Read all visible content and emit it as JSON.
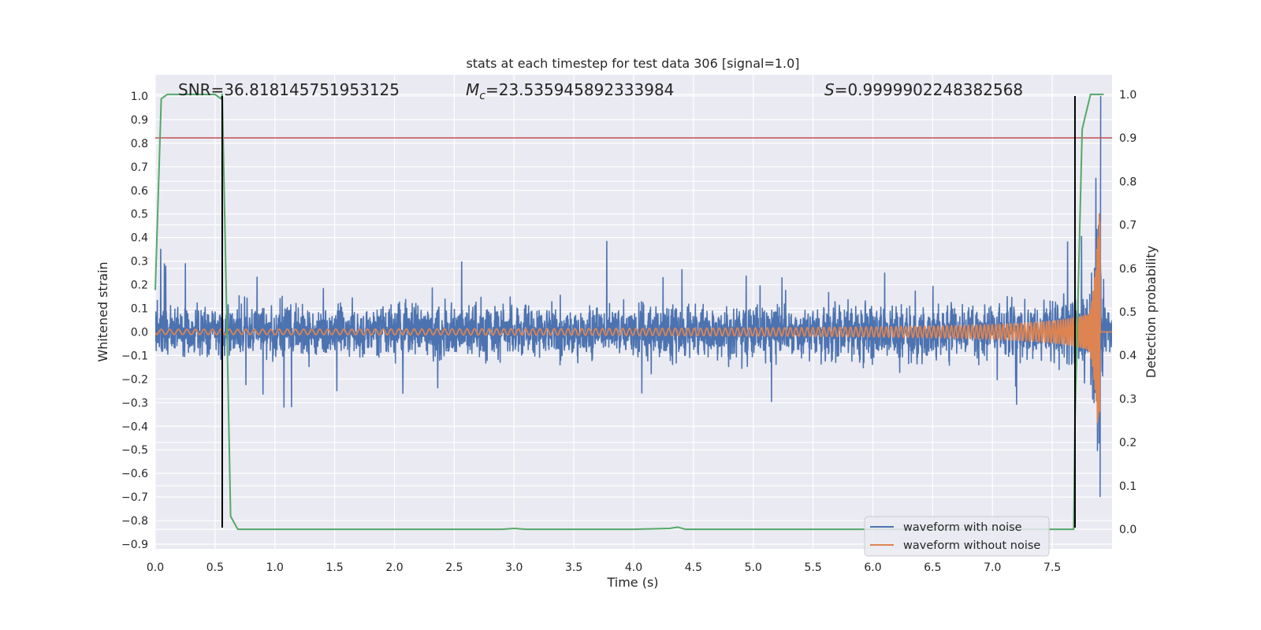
{
  "chart_data": {
    "type": "line",
    "title": "stats at each timestep for test data 306 [signal=1.0]",
    "xlabel": "Time (s)",
    "ylabel": "Whitened strain",
    "ylabel_right": "Detection probability",
    "xlim": [
      0.0,
      8.0
    ],
    "ylim": [
      -0.92,
      1.09
    ],
    "ylim_right": [
      -0.045,
      1.045
    ],
    "xticks": [
      "0.0",
      "0.5",
      "1.0",
      "1.5",
      "2.0",
      "2.5",
      "3.0",
      "3.5",
      "4.0",
      "4.5",
      "5.0",
      "5.5",
      "6.0",
      "6.5",
      "7.0",
      "7.5"
    ],
    "yticks": [
      "−0.9",
      "−0.8",
      "−0.7",
      "−0.6",
      "−0.5",
      "−0.4",
      "−0.3",
      "−0.2",
      "−0.1",
      "0.0",
      "0.1",
      "0.2",
      "0.3",
      "0.4",
      "0.5",
      "0.6",
      "0.7",
      "0.8",
      "0.9",
      "1.0"
    ],
    "yticks_right": [
      "0.0",
      "0.1",
      "0.2",
      "0.3",
      "0.4",
      "0.5",
      "0.6",
      "0.7",
      "0.8",
      "0.9",
      "1.0"
    ],
    "grid": true,
    "annotations": {
      "snr": "SNR=36.818145751953125",
      "mc_symbol": "M",
      "mc_subscript": "c",
      "mc_value": "=23.535945892333984",
      "s_symbol": "S",
      "s_value": "=0.9999902248382568"
    },
    "legend": {
      "placement": "lower-right",
      "entries": [
        "waveform with noise",
        "waveform without noise"
      ]
    },
    "colors": {
      "noise": "#4c72b0",
      "clean": "#dd8452",
      "probability": "#55a868",
      "threshold": "#c44e52",
      "markers": "#000000",
      "background": "#eaeaf2",
      "grid": "#ffffff"
    },
    "threshold_right": 0.9,
    "vertical_markers": [
      {
        "x": 0.56,
        "ymin": -0.83,
        "ymax": 1.0
      },
      {
        "x": 7.69,
        "ymin": -0.83,
        "ymax": 1.0
      }
    ],
    "series": [
      {
        "name": "waveform with noise",
        "axis": "left",
        "description": "noisy whitened strain, amplitude about ±0.25 with spikes up to ±0.5, large peak near 7.9 s",
        "envelope": {
          "x": [
            0.0,
            1.0,
            2.0,
            3.0,
            4.0,
            5.0,
            6.0,
            7.0,
            7.5,
            7.7,
            7.8,
            7.85,
            7.9,
            7.92,
            7.95,
            8.0
          ],
          "amplitude": [
            0.22,
            0.22,
            0.22,
            0.22,
            0.22,
            0.22,
            0.22,
            0.23,
            0.25,
            0.3,
            0.42,
            0.6,
            0.75,
            0.55,
            0.2,
            0.2
          ]
        }
      },
      {
        "name": "waveform without noise",
        "axis": "left",
        "description": "chirp signal growing in amplitude and frequency, merging near 7.9 s",
        "merger_time": 7.9
      },
      {
        "name": "detection probability",
        "axis": "right",
        "x": [
          0.0,
          0.05,
          0.1,
          0.2,
          0.3,
          0.4,
          0.5,
          0.55,
          0.56,
          0.6,
          0.63,
          0.69,
          1.0,
          2.0,
          2.9,
          3.0,
          3.1,
          4.0,
          4.3,
          4.37,
          4.43,
          5.0,
          6.0,
          7.0,
          7.68,
          7.69,
          7.75,
          7.82,
          7.85,
          7.9,
          7.93
        ],
        "values": [
          0.55,
          0.99,
          1.0,
          1.0,
          1.0,
          1.0,
          1.0,
          0.99,
          1.0,
          0.45,
          0.03,
          0.0,
          0.0,
          0.0,
          0.0,
          0.002,
          0.0,
          0.0,
          0.002,
          0.005,
          0.0,
          0.0,
          0.0,
          0.0,
          0.0,
          0.25,
          0.92,
          1.0,
          1.0,
          1.0,
          1.0
        ]
      }
    ]
  }
}
